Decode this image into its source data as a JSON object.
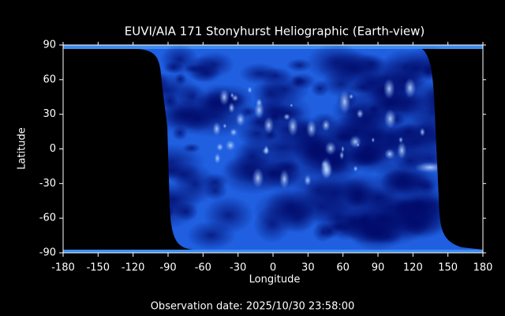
{
  "chart_data": {
    "type": "image",
    "title": "EUVI/AIA 171 Stonyhurst Heliographic (Earth-view)",
    "x_label": "Longitude",
    "y_label": "Latitude",
    "xlim": [
      -180,
      180
    ],
    "ylim": [
      -90,
      90
    ],
    "xticks": [
      -180,
      -150,
      -120,
      -90,
      -60,
      -30,
      0,
      30,
      60,
      90,
      120,
      150,
      180
    ],
    "yticks": [
      -90,
      -60,
      -30,
      0,
      30,
      60,
      90
    ],
    "footer": "Observation date: 2025/10/30 23:58:00"
  }
}
